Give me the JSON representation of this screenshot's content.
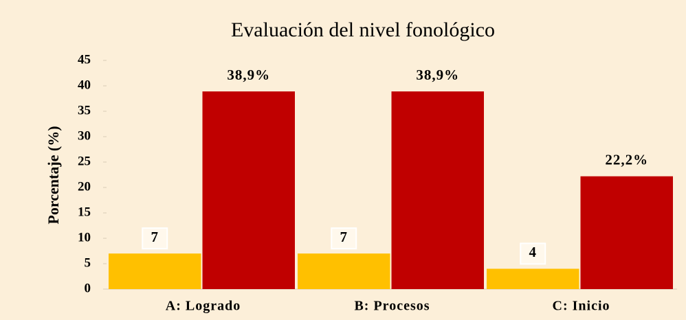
{
  "chart_data": {
    "type": "bar",
    "title": "Evaluación del nivel fonológico",
    "y_label": "Porcentaje (%)",
    "categories": [
      "A: Logrado",
      "B: Procesos",
      "C: Inicio"
    ],
    "series": [
      {
        "color": "#ffc000",
        "values": [
          7,
          7,
          4
        ]
      },
      {
        "color": "#c00000",
        "values": [
          38.9,
          38.9,
          22.2
        ],
        "value_labels": [
          "38,9%",
          "38,9%",
          "22,2%"
        ]
      }
    ],
    "ylim": [
      0,
      45
    ],
    "yticks": [
      0,
      5,
      10,
      15,
      20,
      25,
      30,
      35,
      40,
      45
    ],
    "grid": false
  }
}
